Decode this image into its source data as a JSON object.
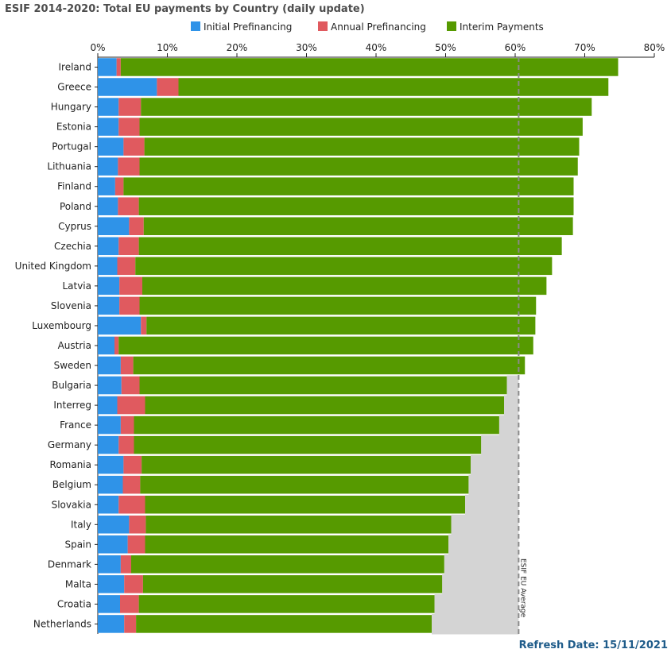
{
  "title": "ESIF 2014-2020: Total EU payments by Country (daily update)",
  "refresh_label": "Refresh Date: 15/11/2021",
  "chart_data": {
    "type": "bar",
    "orientation": "horizontal",
    "stacked": true,
    "title": "ESIF 2014-2020: Total EU payments by Country (daily update)",
    "xlim": [
      0,
      80
    ],
    "xticks": [
      "0%",
      "10%",
      "20%",
      "30%",
      "40%",
      "50%",
      "60%",
      "70%",
      "80%"
    ],
    "legend_position": "top",
    "categories": [
      "Ireland",
      "Greece",
      "Hungary",
      "Estonia",
      "Portugal",
      "Lithuania",
      "Finland",
      "Poland",
      "Cyprus",
      "Czechia",
      "United Kingdom",
      "Latvia",
      "Slovenia",
      "Luxembourg",
      "Austria",
      "Sweden",
      "Bulgaria",
      "Interreg",
      "France",
      "Germany",
      "Romania",
      "Belgium",
      "Slovakia",
      "Italy",
      "Spain",
      "Denmark",
      "Malta",
      "Croatia",
      "Netherlands"
    ],
    "series": [
      {
        "name": "Initial Prefinancing",
        "color": "#2f93e8",
        "values": [
          2.7,
          8.5,
          3.0,
          3.0,
          3.7,
          2.9,
          2.5,
          2.9,
          4.5,
          3.0,
          2.8,
          3.1,
          3.1,
          6.2,
          2.4,
          3.3,
          3.4,
          2.8,
          3.3,
          3.0,
          3.7,
          3.6,
          3.0,
          4.5,
          4.3,
          3.3,
          3.8,
          3.2,
          3.8
        ]
      },
      {
        "name": "Annual Prefinancing",
        "color": "#e05a5f",
        "values": [
          0.6,
          3.1,
          3.2,
          3.0,
          3.0,
          3.1,
          1.2,
          3.0,
          2.1,
          2.9,
          2.6,
          3.3,
          2.9,
          0.8,
          0.6,
          1.8,
          2.6,
          4.0,
          1.9,
          2.2,
          2.6,
          2.5,
          3.8,
          2.4,
          2.5,
          1.5,
          2.7,
          2.7,
          1.7
        ]
      },
      {
        "name": "Interim Payments",
        "color": "#569a00",
        "values": [
          71.5,
          61.8,
          64.8,
          63.7,
          62.5,
          63.0,
          64.7,
          62.5,
          61.7,
          60.8,
          59.9,
          58.1,
          57.0,
          55.9,
          59.6,
          56.3,
          52.8,
          51.6,
          52.5,
          49.9,
          47.3,
          47.2,
          46.0,
          43.9,
          43.6,
          45.0,
          43.0,
          42.5,
          42.5
        ]
      }
    ],
    "reference_line": {
      "label": "ESIF EU Average",
      "value": 60.5
    }
  }
}
